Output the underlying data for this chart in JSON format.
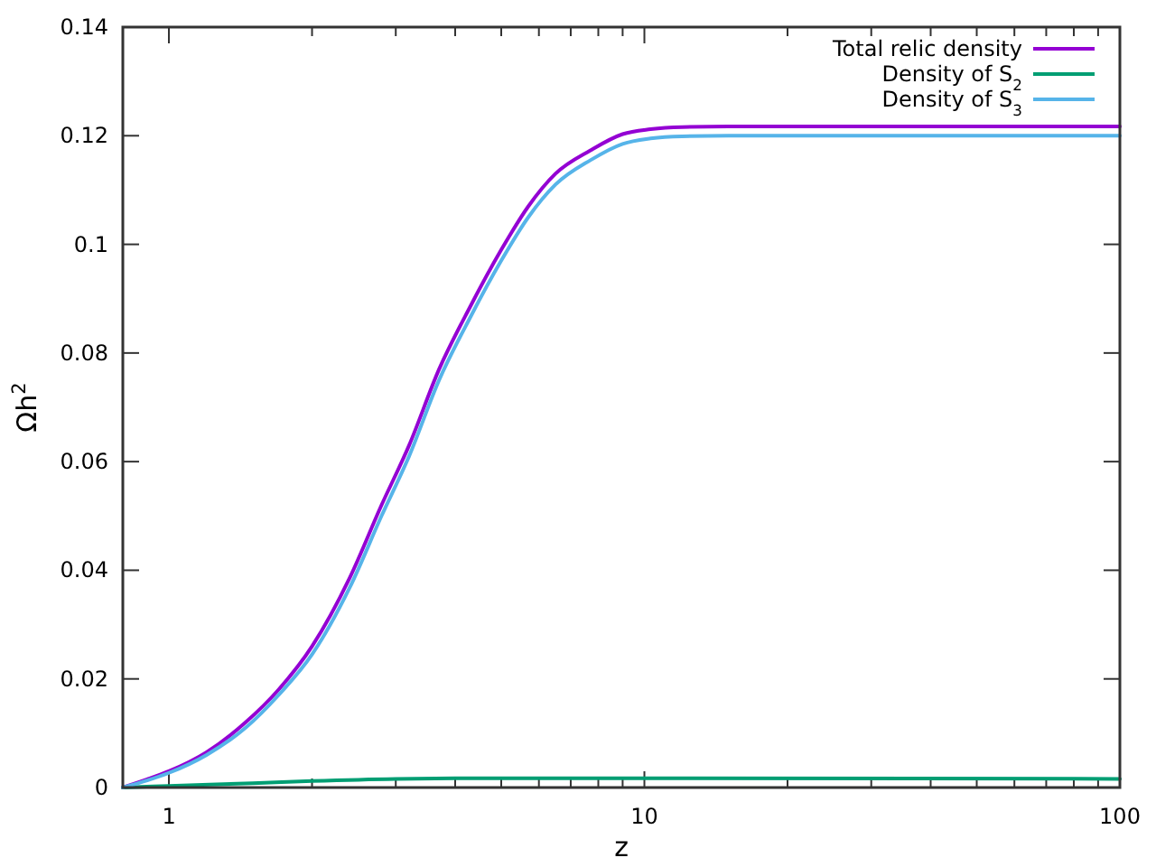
{
  "chart_data": {
    "type": "line",
    "xlabel": "z",
    "ylabel": "Ωh$^{2}$",
    "log": "x",
    "xlim": [
      0.8,
      100
    ],
    "ylim": [
      0,
      0.14
    ],
    "xticks": [
      1,
      {
        "value": 2,
        "label": null
      },
      {
        "value": 3,
        "label": null
      },
      {
        "value": 4,
        "label": null
      },
      {
        "value": 5,
        "label": null
      },
      {
        "value": 6,
        "label": null
      },
      {
        "value": 7,
        "label": null
      },
      {
        "value": 8,
        "label": null
      },
      {
        "value": 9,
        "label": null
      },
      10,
      {
        "value": 20,
        "label": null
      },
      {
        "value": 30,
        "label": null
      },
      {
        "value": 40,
        "label": null
      },
      {
        "value": 50,
        "label": null
      },
      {
        "value": 60,
        "label": null
      },
      {
        "value": 70,
        "label": null
      },
      {
        "value": 80,
        "label": null
      },
      {
        "value": 90,
        "label": null
      },
      100
    ],
    "yticks": [
      0,
      0.02,
      0.04,
      0.06,
      0.08,
      0.1,
      0.12,
      0.14
    ],
    "grid": false,
    "legend": "top right",
    "marker": "none",
    "line_style": "solid",
    "series": [
      {
        "name": "Total relic density",
        "color": "#9400d3",
        "x": [
          0.8,
          0.9,
          1,
          1.2,
          1.45,
          1.7,
          2,
          2.4,
          2.8,
          3.2,
          3.7,
          4.3,
          5,
          5.7,
          6.5,
          7.7,
          9,
          10.3,
          12,
          15,
          20,
          50,
          100
        ],
        "values": [
          0,
          0.0015,
          0.003,
          0.0065,
          0.012,
          0.018,
          0.026,
          0.0386,
          0.052,
          0.063,
          0.077,
          0.0885,
          0.099,
          0.107,
          0.113,
          0.1173,
          0.1203,
          0.1212,
          0.1216,
          0.1217,
          0.1217,
          0.1217,
          0.1217
        ]
      },
      {
        "name": "Density of S$_{2}$",
        "color": "#009e73",
        "x": [
          0.8,
          1,
          1.5,
          2,
          3,
          4,
          10,
          100
        ],
        "values": [
          0,
          0.0003,
          0.0008,
          0.0012,
          0.0016,
          0.0017,
          0.0017,
          0.0016
        ]
      },
      {
        "name": "Density of S$_{3}$",
        "color": "#56b4e9",
        "x": [
          0.8,
          0.9,
          1,
          1.2,
          1.45,
          1.7,
          2,
          2.4,
          2.8,
          3.2,
          3.7,
          4.3,
          5,
          5.7,
          6.5,
          7.7,
          9,
          10.3,
          12,
          15,
          20,
          50,
          100
        ],
        "values": [
          0,
          0.0013,
          0.0027,
          0.006,
          0.011,
          0.017,
          0.0245,
          0.0368,
          0.05,
          0.061,
          0.075,
          0.0865,
          0.097,
          0.105,
          0.111,
          0.1155,
          0.1185,
          0.1195,
          0.1199,
          0.12,
          0.12,
          0.12,
          0.12
        ]
      }
    ]
  }
}
